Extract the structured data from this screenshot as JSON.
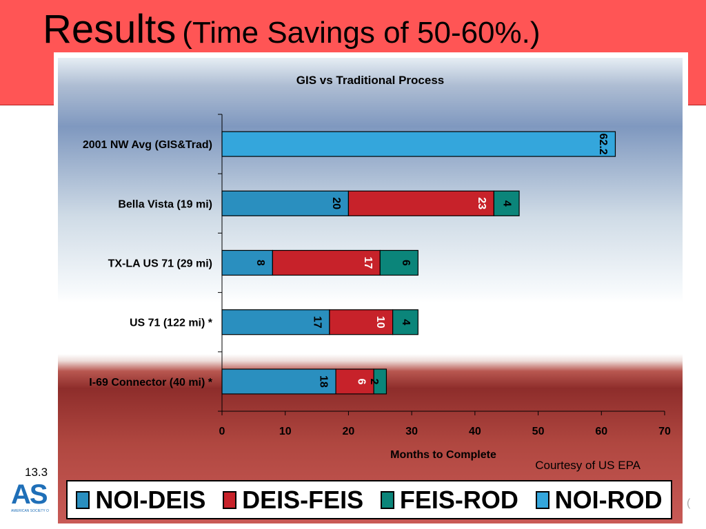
{
  "slide": {
    "title_main": "Results",
    "title_sub": "(Time Savings of 50-60%.)",
    "page_number": "13.3",
    "logo_text": "AS",
    "logo_subtext": "AMERICAN SOCIETY O",
    "right_mark": "("
  },
  "colors": {
    "NOI-DEIS": "#2a8fbf",
    "DEIS-FEIS": "#c7222a",
    "FEIS-ROD": "#0b857a",
    "NOI-ROD": "#34a6dc"
  },
  "legend": {
    "items": [
      {
        "label": "NOI-DEIS",
        "color": "#2a8fbf"
      },
      {
        "label": "DEIS-FEIS",
        "color": "#c7222a"
      },
      {
        "label": "FEIS-ROD",
        "color": "#0b857a"
      },
      {
        "label": "NOI-ROD",
        "color": "#34a6dc"
      }
    ]
  },
  "chart_data": {
    "type": "bar",
    "orientation": "horizontal",
    "stacked": true,
    "title": "GIS vs Traditional Process",
    "xlabel": "Months to Complete",
    "ylabel": "",
    "xlim": [
      0,
      70
    ],
    "xticks": [
      0,
      10,
      20,
      30,
      40,
      50,
      60,
      70
    ],
    "grid": false,
    "legend_position": "bottom",
    "annotation": "Courtesy  of US EPA",
    "categories": [
      "2001 NW Avg (GIS&Trad)",
      "Bella Vista (19 mi)",
      "TX-LA US 71 (29 mi)",
      "US 71 (122 mi) *",
      "I-69 Connector (40 mi) *"
    ],
    "series": [
      {
        "name": "NOI-DEIS",
        "values": [
          null,
          20,
          8,
          17,
          18
        ]
      },
      {
        "name": "DEIS-FEIS",
        "values": [
          null,
          23,
          17,
          10,
          6
        ]
      },
      {
        "name": "FEIS-ROD",
        "values": [
          null,
          4,
          6,
          4,
          2
        ]
      },
      {
        "name": "NOI-ROD",
        "values": [
          62.2,
          null,
          null,
          null,
          null
        ]
      }
    ]
  }
}
